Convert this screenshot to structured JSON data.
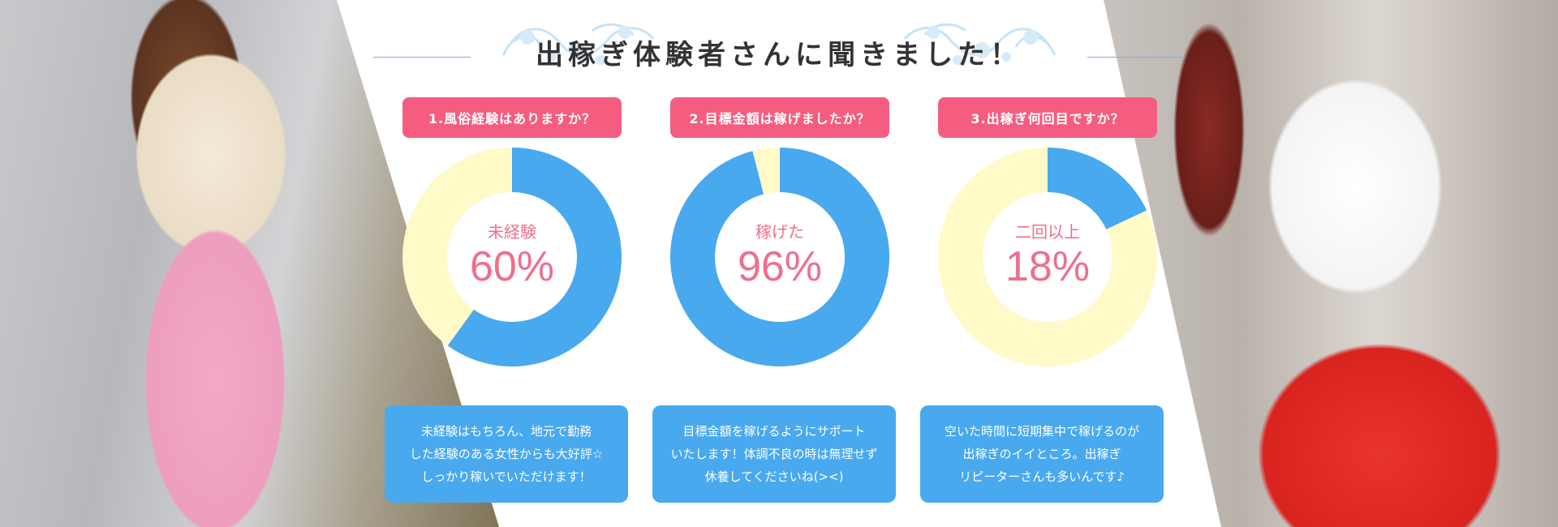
{
  "title": "出稼ぎ体験者さんに聞きました！",
  "colors": {
    "primary": "#48a9ef",
    "remainder": "#fffac8",
    "tag": "#f45d80",
    "value_text": "#ef6f8d"
  },
  "chart_data": [
    {
      "type": "pie",
      "title": "1.風俗経験はありますか？",
      "center_label": "未経験",
      "center_value": "60%",
      "value": 60,
      "slices": [
        {
          "value": 60
        },
        {
          "value": 40
        }
      ],
      "description_lines": [
        "未経験はもちろん、地元で勤務",
        "した経験のある女性からも大好評☆",
        "しっかり稼いでいただけます！"
      ]
    },
    {
      "type": "pie",
      "title": "2.目標金額は稼げましたか？",
      "center_label": "稼げた",
      "center_value": "96%",
      "value": 96,
      "slices": [
        {
          "value": 96
        },
        {
          "value": 4
        }
      ],
      "description_lines": [
        "目標金額を稼げるようにサポート",
        "いたします！体調不良の時は無理せず",
        "休養してくださいね(><)"
      ]
    },
    {
      "type": "pie",
      "title": "3.出稼ぎ何回目ですか？",
      "center_label": "二回以上",
      "center_value": "18%",
      "value": 18,
      "slices": [
        {
          "value": 18
        },
        {
          "value": 82
        }
      ],
      "description_lines": [
        "空いた時間に短期集中で稼げるのが",
        "出稼ぎのイイところ。出稼ぎ",
        "リピーターさんも多いんです♪"
      ]
    }
  ]
}
